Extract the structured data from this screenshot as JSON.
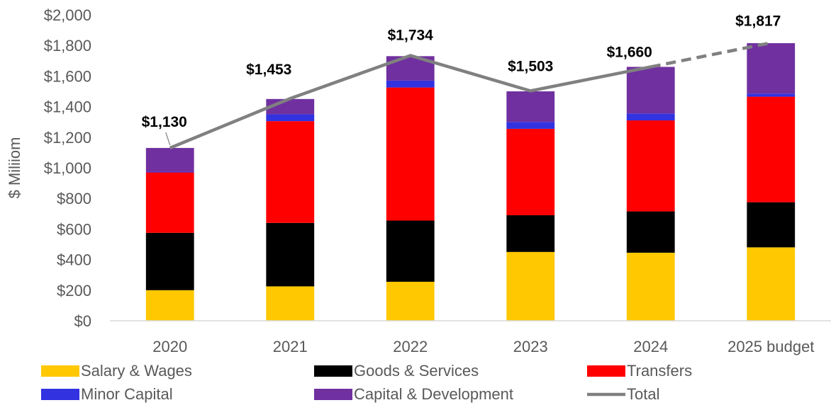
{
  "chart_data": {
    "type": "bar",
    "stacked": true,
    "categories": [
      "2020",
      "2021",
      "2022",
      "2023",
      "2024",
      "2025 budget"
    ],
    "ylabel": "$ Miliiom",
    "ylim": [
      0,
      2000
    ],
    "yticks": [
      0,
      200,
      400,
      600,
      800,
      1000,
      1200,
      1400,
      1600,
      1800,
      2000
    ],
    "ytick_labels": [
      "$0",
      "$200",
      "$400",
      "$600",
      "$800",
      "$1,000",
      "$1,200",
      "$1,400",
      "$1,600",
      "$1,800",
      "$2,000"
    ],
    "grid": false,
    "legend_position": "bottom",
    "series": [
      {
        "name": "Salary & Wages",
        "color": "#FFC800",
        "values": [
          200,
          225,
          255,
          450,
          445,
          480
        ]
      },
      {
        "name": "Goods & Services",
        "color": "#000000",
        "values": [
          375,
          415,
          400,
          240,
          270,
          295
        ]
      },
      {
        "name": "Transfers",
        "color": "#FF0000",
        "values": [
          395,
          665,
          870,
          565,
          595,
          690
        ]
      },
      {
        "name": "Minor Capital",
        "color": "#3232E0",
        "values": [
          5,
          45,
          45,
          45,
          45,
          20
        ]
      },
      {
        "name": "Capital & Development",
        "color": "#7030A0",
        "values": [
          155,
          100,
          160,
          200,
          305,
          330
        ]
      }
    ],
    "total": {
      "name": "Total",
      "color": "#808080",
      "values": [
        1130,
        1453,
        1734,
        1503,
        1660,
        1817
      ],
      "labels": [
        "$1,130",
        "$1,453",
        "$1,734",
        "$1,503",
        "$1,660",
        "$1,817"
      ],
      "label_colors": [
        "#000000",
        "#000000",
        "#000000",
        "#000000",
        "#000000",
        "#FF0000"
      ],
      "dashed_last_segment": true
    }
  }
}
